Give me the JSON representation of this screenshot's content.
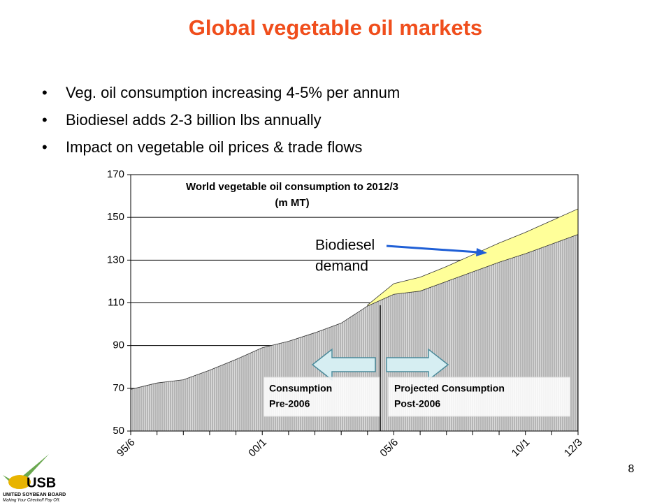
{
  "slide": {
    "title": "Global vegetable oil markets",
    "bullets": [
      "Veg. oil consumption increasing 4-5% per annum",
      "Biodiesel adds 2-3 billion lbs annually",
      "Impact on vegetable oil prices & trade flows"
    ],
    "page_number": "8",
    "logo": {
      "mark": "USB",
      "name": "UNITED SOYBEAN BOARD",
      "slogan": "Making Your Checkoff Pay Off."
    }
  },
  "chart_data": {
    "type": "area",
    "title": [
      "World vegetable oil consumption to 2012/3",
      "(m MT)"
    ],
    "categories": [
      "95/6",
      null,
      null,
      null,
      null,
      "00/1",
      null,
      null,
      null,
      null,
      "05/6",
      null,
      null,
      null,
      null,
      "10/1",
      null,
      "12/3"
    ],
    "series": [
      {
        "color": "#ffff99",
        "values": [
          null,
          null,
          null,
          null,
          null,
          null,
          null,
          null,
          null,
          109,
          119,
          122,
          127,
          132.5,
          138,
          143,
          148.5,
          154
        ]
      },
      {
        "color": "#d9d9d9",
        "values": [
          69.5,
          72.5,
          74,
          78.5,
          83.5,
          89,
          92,
          96,
          100.5,
          108.5,
          114,
          115.5,
          120,
          124.5,
          129,
          133,
          137.5,
          142
        ]
      }
    ],
    "ylim": [
      50,
      170
    ],
    "yticks": [
      50,
      70,
      90,
      110,
      130,
      150,
      170
    ],
    "grid": true,
    "annotations": [
      {
        "lines": [
          "Biodiesel",
          "demand"
        ]
      },
      {
        "lines": [
          "Consumption",
          "Pre-2006"
        ]
      },
      {
        "lines": [
          "Projected Consumption",
          "Post-2006"
        ]
      }
    ]
  }
}
